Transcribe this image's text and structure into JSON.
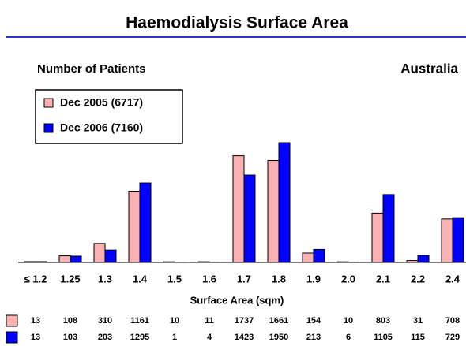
{
  "chart_data": {
    "type": "bar",
    "title": "Haemodialysis Surface Area",
    "y_label": "Number of Patients",
    "annotation": "Australia",
    "x_label": "Surface Area  (sqm)",
    "categories": [
      "≤ 1.2",
      "1.25",
      "1.3",
      "1.4",
      "1.5",
      "1.6",
      "1.7",
      "1.8",
      "1.9",
      "2.0",
      "2.1",
      "2.2",
      "2.4"
    ],
    "series": [
      {
        "name": "Dec 2005  (6717)",
        "color": "#f9b1b1",
        "values": [
          13,
          108,
          310,
          1161,
          10,
          11,
          1737,
          1661,
          154,
          10,
          803,
          31,
          708
        ]
      },
      {
        "name": "Dec 2006  (7160)",
        "color": "#0000ff",
        "values": [
          13,
          103,
          203,
          1295,
          1,
          4,
          1423,
          1950,
          213,
          6,
          1105,
          115,
          729
        ]
      }
    ]
  }
}
